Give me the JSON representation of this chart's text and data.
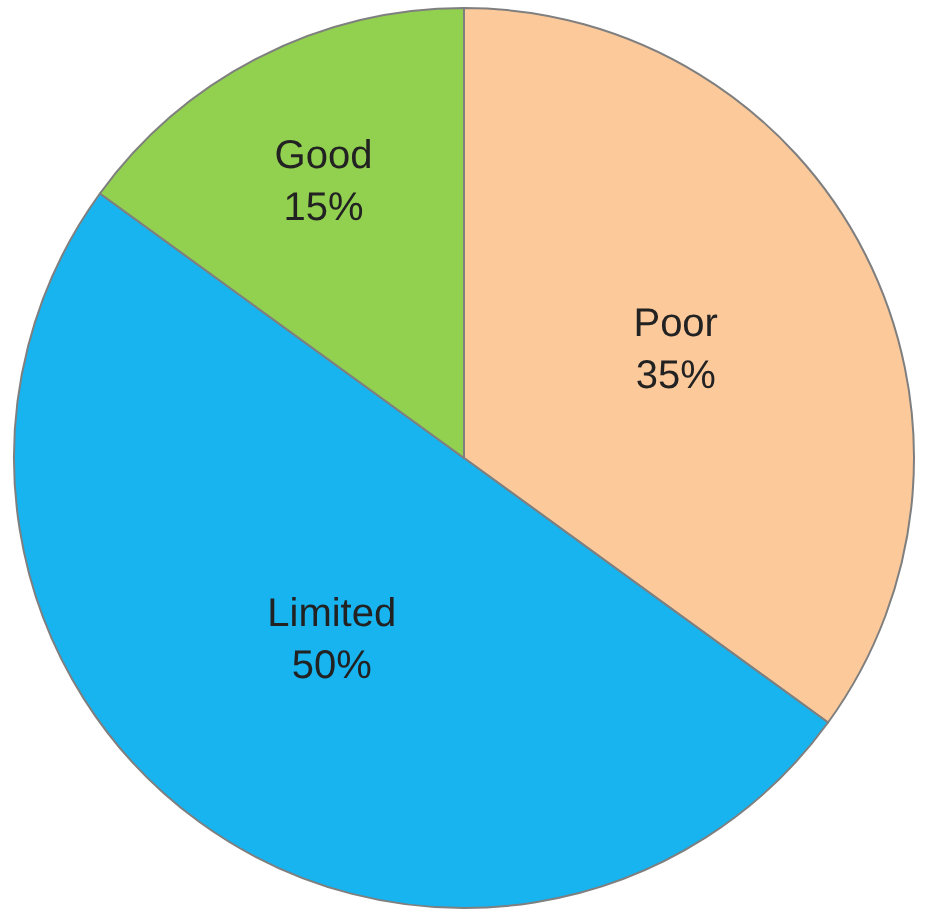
{
  "chart_data": {
    "type": "pie",
    "categories": [
      "Poor",
      "Limited",
      "Good"
    ],
    "values": [
      35,
      50,
      15
    ],
    "value_labels": [
      "35%",
      "50%",
      "15%"
    ],
    "colors": [
      "#fcc99b",
      "#17b4f0",
      "#92d050"
    ],
    "legend": false
  }
}
